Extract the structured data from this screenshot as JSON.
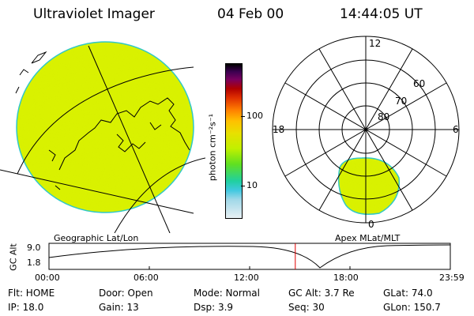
{
  "header": {
    "title": "Ultraviolet Imager",
    "date": "04 Feb 00",
    "time": "14:44:05 UT"
  },
  "colorbar": {
    "unit_label": "photon cm⁻²s⁻¹",
    "tick_100": "100",
    "tick_10": "10"
  },
  "panels": {
    "left_label": "Geographic Lat/Lon",
    "right_label": "Apex  MLat/MLT"
  },
  "polar": {
    "mlt_12": "12",
    "mlt_18": "18",
    "mlt_6": "6",
    "mlt_0": "0",
    "lat_60": "60",
    "lat_70": "70",
    "lat_80": "80"
  },
  "altitude_plot": {
    "ylabel": "GC Alt",
    "y_max": "9.0",
    "y_min": "1.8",
    "x_ticks": [
      "00:00",
      "06:00",
      "12:00",
      "18:00",
      "23:59"
    ],
    "current_marker_time_hours": 14.73
  },
  "info": {
    "flt": "Flt: HOME",
    "door": "Door: Open",
    "mode": "Mode: Normal",
    "gc_alt": "GC Alt: 3.7 Re",
    "glat": "GLat:  74.0",
    "ip": "IP: 18.0",
    "gain": "Gain: 13",
    "dsp": "Dsp:     3.9",
    "seq": "Seq: 30",
    "glon": "GLon: 150.7"
  },
  "colors": {
    "aurora_fill": "#d8f000",
    "aurora_edge": "#30c8c8",
    "marker": "#e00000"
  }
}
